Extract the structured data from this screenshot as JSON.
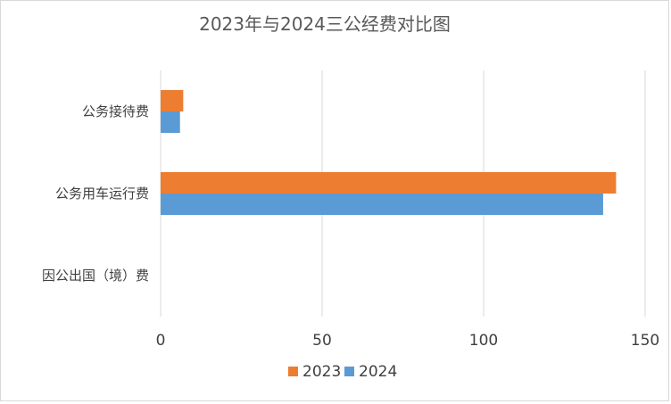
{
  "chart_data": {
    "type": "bar",
    "orientation": "horizontal",
    "title": "2023年与2024三公经费对比图",
    "categories": [
      "公务接待费",
      "公务用车运行费",
      "因公出国（境）费"
    ],
    "series": [
      {
        "name": "2023",
        "color": "#ED7D31",
        "values": [
          7,
          141,
          0
        ]
      },
      {
        "name": "2024",
        "color": "#5B9BD5",
        "values": [
          6,
          137,
          0
        ]
      }
    ],
    "xlim": [
      0,
      150
    ],
    "xticks": [
      0,
      50,
      100,
      150
    ],
    "grid": "vertical",
    "legend": "bottom"
  }
}
